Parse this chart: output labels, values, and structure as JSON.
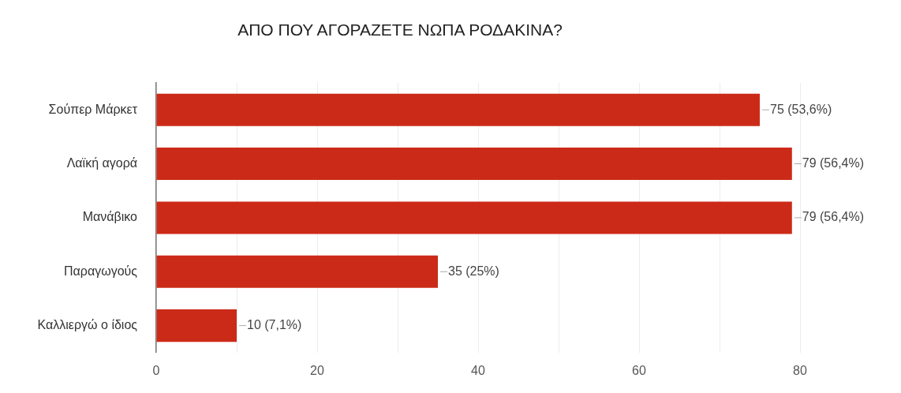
{
  "chart_data": {
    "type": "bar",
    "orientation": "horizontal",
    "title": "ΑΠΟ ΠΟΥ ΑΓΟΡΑΖΕΤΕ ΝΩΠΑ ΡΟΔΑΚΙΝΑ?",
    "categories": [
      "Σούπερ Μάρκετ",
      "Λαϊκή αγορά",
      "Μανάβικο",
      "Παραγωγούς",
      "Καλλιεργώ ο ίδιος"
    ],
    "values": [
      75,
      79,
      79,
      35,
      10
    ],
    "value_labels": [
      "75 (53,6%)",
      "79 (56,4%)",
      "79 (56,4%)",
      "35 (25%)",
      "10 (7,1%)"
    ],
    "color": "#cc2a18",
    "xlim": [
      0,
      80
    ],
    "xticks": [
      0,
      {
        "value": 10,
        "label": null
      },
      20,
      {
        "value": 30,
        "label": null
      },
      40,
      {
        "value": 50,
        "label": null
      },
      60,
      {
        "value": 70,
        "label": null
      },
      80
    ],
    "grid": "x",
    "legend": false
  }
}
